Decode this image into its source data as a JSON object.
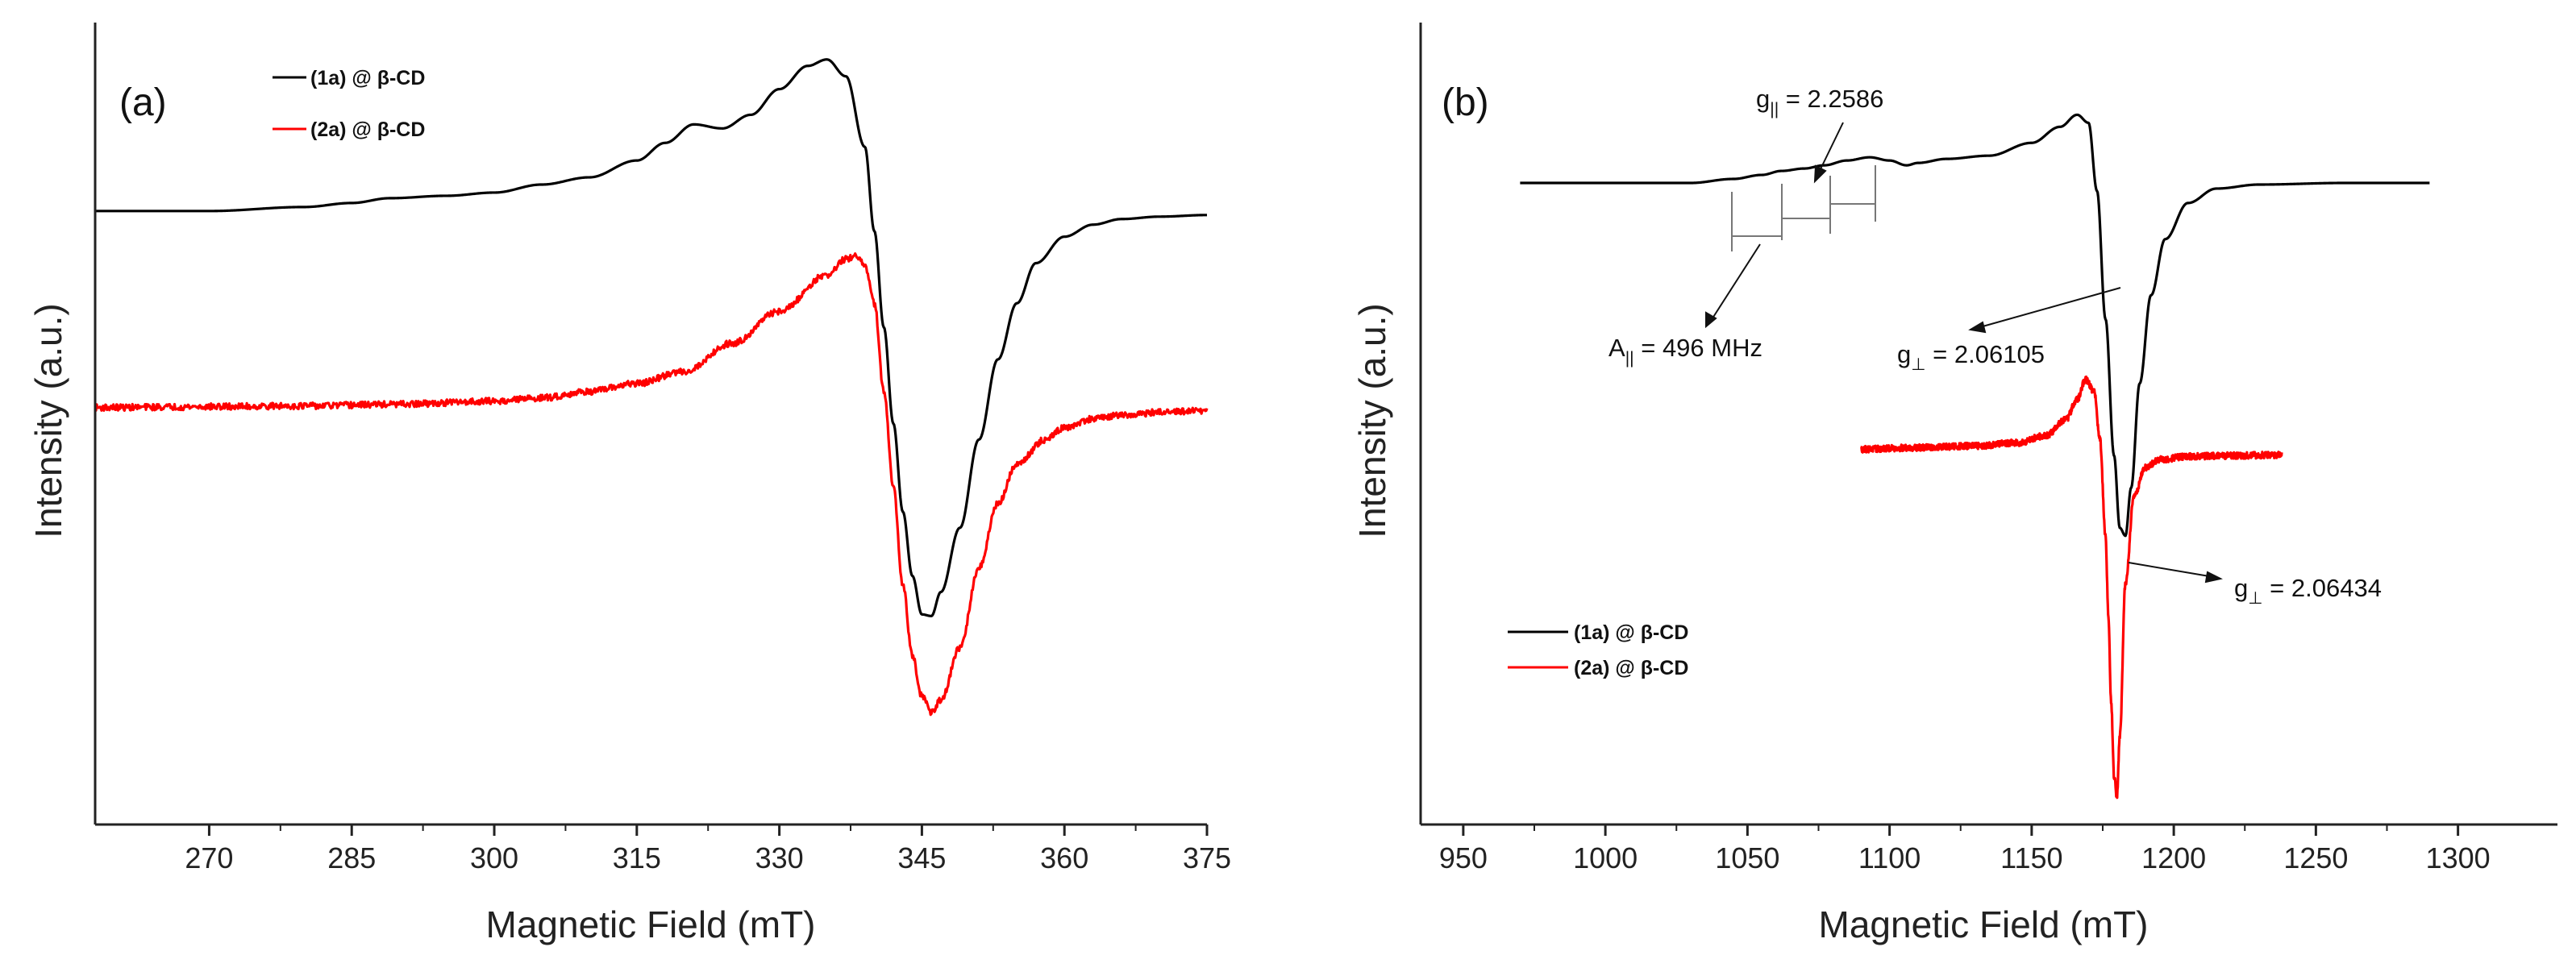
{
  "chart_data": [
    {
      "type": "line",
      "panel_label": "(a)",
      "xlabel": "Magnetic Field (mT)",
      "ylabel": "Intensity (a.u.)",
      "xlim": [
        258,
        375
      ],
      "ylim": [
        0,
        1
      ],
      "xticks": [
        270,
        285,
        300,
        315,
        330,
        345,
        360,
        375
      ],
      "y_tick_labels": false,
      "legend": {
        "position": "top-left",
        "entries": [
          {
            "series": "(1a) @ β-CD",
            "label": "(1a) @ β-CD",
            "color": "#000000"
          },
          {
            "series": "(2a) @ β-CD",
            "label": "(2a) @ β-CD",
            "color": "#ff0000"
          }
        ]
      },
      "series": [
        {
          "name": "(1a) @ β-CD",
          "color": "#000000",
          "noise": 0,
          "x": [
            258,
            270,
            280,
            285,
            289,
            295,
            300,
            305,
            310,
            315,
            318,
            321,
            324,
            327,
            330,
            333,
            335,
            337,
            339,
            340,
            341,
            342,
            343,
            344,
            345,
            346,
            347,
            349,
            351,
            353,
            355,
            357,
            360,
            363,
            366,
            370,
            375
          ],
          "y": [
            0.765,
            0.765,
            0.77,
            0.775,
            0.781,
            0.784,
            0.788,
            0.798,
            0.807,
            0.828,
            0.85,
            0.873,
            0.868,
            0.885,
            0.917,
            0.946,
            0.954,
            0.933,
            0.845,
            0.74,
            0.62,
            0.5,
            0.39,
            0.31,
            0.262,
            0.26,
            0.29,
            0.37,
            0.48,
            0.58,
            0.65,
            0.7,
            0.733,
            0.748,
            0.755,
            0.758,
            0.76
          ]
        },
        {
          "name": "(2a) @ β-CD",
          "color": "#ff0000",
          "noise": 0.004,
          "x": [
            258,
            270,
            280,
            290,
            300,
            305,
            310,
            315,
            320,
            325,
            330,
            335,
            337,
            338,
            339,
            340,
            341,
            342,
            343,
            344,
            345,
            346,
            347,
            349,
            351,
            353,
            355,
            358,
            360,
            363,
            366,
            370,
            375
          ],
          "y": [
            0.52,
            0.521,
            0.522,
            0.524,
            0.528,
            0.532,
            0.54,
            0.55,
            0.565,
            0.6,
            0.64,
            0.685,
            0.705,
            0.708,
            0.698,
            0.65,
            0.54,
            0.42,
            0.3,
            0.21,
            0.16,
            0.14,
            0.155,
            0.22,
            0.32,
            0.4,
            0.45,
            0.48,
            0.495,
            0.506,
            0.51,
            0.514,
            0.516
          ]
        }
      ]
    },
    {
      "type": "line",
      "panel_label": "(b)",
      "xlabel": "Magnetic Field (mT)",
      "ylabel": "Intensity (a.u.)",
      "xlim": [
        935,
        1335
      ],
      "ylim": [
        0,
        1
      ],
      "xticks": [
        950,
        1000,
        1050,
        1100,
        1150,
        1200,
        1250,
        1300
      ],
      "y_tick_labels": false,
      "legend": {
        "position": "lower-left",
        "entries": [
          {
            "series": "(1a) @ β-CD",
            "label": "(1a) @ β-CD",
            "color": "#000000"
          },
          {
            "series": "(2a) @ β-CD",
            "label": "(2a) @ β-CD",
            "color": "#ff0000"
          }
        ]
      },
      "series": [
        {
          "name": "(1a) @ β-CD",
          "color": "#000000",
          "noise": 0,
          "x": [
            970,
            1000,
            1030,
            1045,
            1055,
            1062,
            1070,
            1077,
            1085,
            1093,
            1100,
            1106,
            1110,
            1120,
            1135,
            1150,
            1160,
            1166,
            1170,
            1173,
            1176,
            1179,
            1181,
            1183,
            1185,
            1188,
            1192,
            1197,
            1205,
            1215,
            1230,
            1260,
            1290
          ],
          "y": [
            0.8,
            0.8,
            0.8,
            0.805,
            0.81,
            0.815,
            0.818,
            0.822,
            0.828,
            0.832,
            0.828,
            0.822,
            0.825,
            0.83,
            0.834,
            0.85,
            0.87,
            0.885,
            0.875,
            0.79,
            0.63,
            0.46,
            0.37,
            0.36,
            0.42,
            0.55,
            0.66,
            0.73,
            0.775,
            0.793,
            0.798,
            0.8,
            0.8
          ]
        },
        {
          "name": "(2a) @ β-CD",
          "color": "#ff0000",
          "noise": 0.004,
          "x": [
            1090,
            1110,
            1130,
            1145,
            1155,
            1162,
            1166,
            1169,
            1172,
            1174,
            1176,
            1177,
            1178,
            1179,
            1180,
            1181,
            1183,
            1186,
            1190,
            1195,
            1205,
            1220,
            1238
          ],
          "y": [
            0.468,
            0.47,
            0.472,
            0.476,
            0.485,
            0.505,
            0.53,
            0.555,
            0.54,
            0.48,
            0.36,
            0.26,
            0.15,
            0.06,
            0.035,
            0.11,
            0.3,
            0.41,
            0.445,
            0.455,
            0.459,
            0.46,
            0.461
          ]
        }
      ],
      "annotations": [
        {
          "text_main": "g",
          "text_sub": "||",
          "text_rest": " = 2.2586"
        },
        {
          "text_main": "A",
          "text_sub": "||",
          "text_rest": " = 496 MHz"
        },
        {
          "text_main": "g",
          "text_sub": "⊥",
          "text_rest": " = 2.06105"
        },
        {
          "text_main": "g",
          "text_sub": "⊥",
          "text_rest": " = 2.06434"
        }
      ]
    }
  ]
}
